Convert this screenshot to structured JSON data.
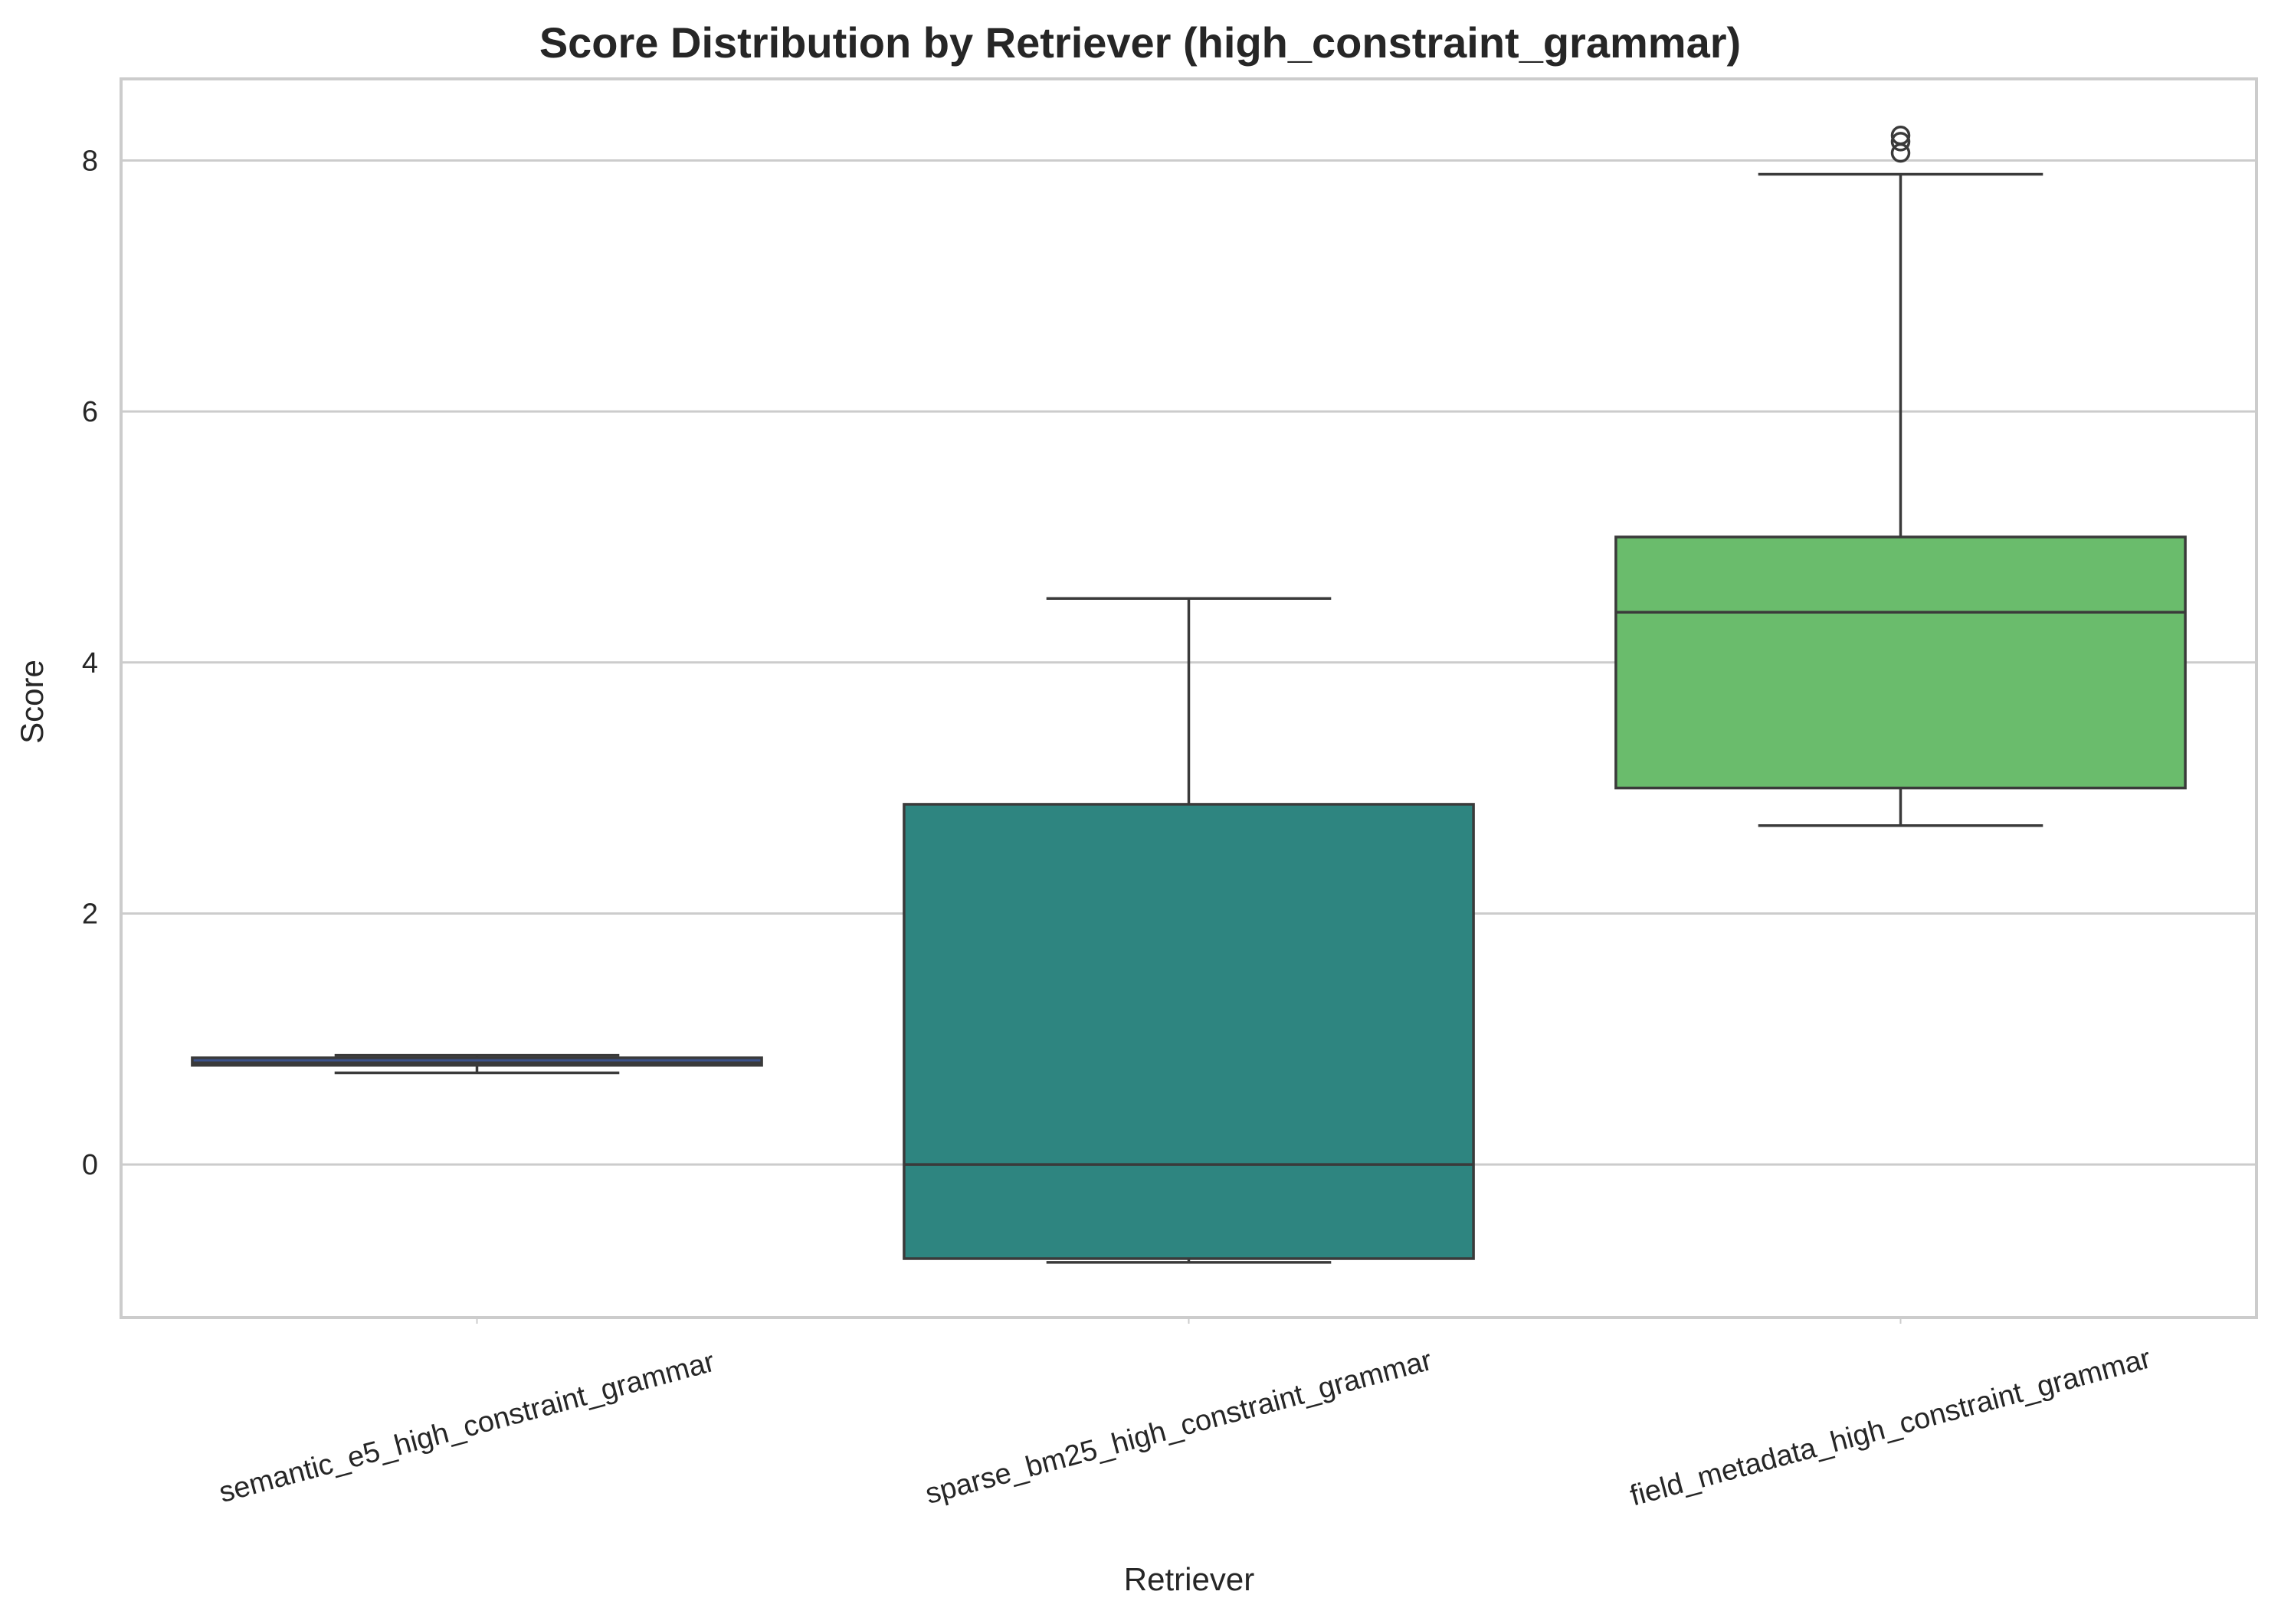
{
  "chart_data": {
    "type": "box",
    "title": "Score Distribution by Retriever (high_constraint_grammar)",
    "xlabel": "Retriever",
    "ylabel": "Score",
    "ylim": [
      -1.22,
      8.65
    ],
    "yticks": [
      0,
      2,
      4,
      6,
      8
    ],
    "grid": "horizontal",
    "categories": [
      "semantic_e5_high_constraint_grammar",
      "sparse_bm25_high_constraint_grammar",
      "field_metadata_high_constraint_grammar"
    ],
    "boxes": [
      {
        "category": "semantic_e5_high_constraint_grammar",
        "whisker_low": 0.73,
        "q1": 0.79,
        "median": 0.81,
        "q3": 0.85,
        "whisker_high": 0.87,
        "outliers": [],
        "color": "#3b528b"
      },
      {
        "category": "sparse_bm25_high_constraint_grammar",
        "whisker_low": -0.78,
        "q1": -0.75,
        "median": 0.0,
        "q3": 2.87,
        "whisker_high": 4.51,
        "outliers": [],
        "color": "#2e8580"
      },
      {
        "category": "field_metadata_high_constraint_grammar",
        "whisker_low": 2.7,
        "q1": 3.0,
        "median": 4.4,
        "q3": 5.0,
        "whisker_high": 7.89,
        "outliers": [
          8.06,
          8.15,
          8.2
        ],
        "color": "#6abc6c"
      }
    ],
    "colors": {
      "edge": "#3a3a3a",
      "grid": "#cccccc",
      "frame": "#cccccc"
    }
  }
}
